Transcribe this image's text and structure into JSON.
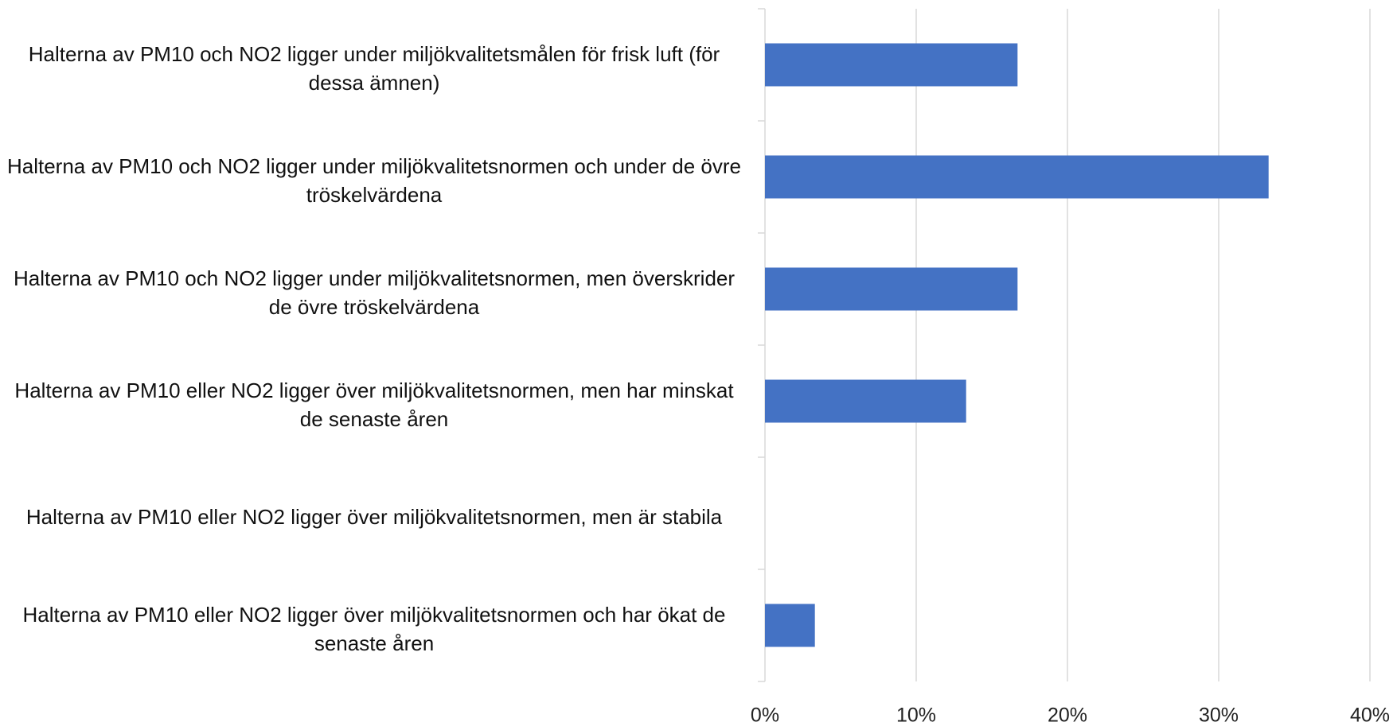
{
  "chart_data": {
    "type": "barh",
    "categories": [
      "Halterna av PM10 och NO2 ligger under miljökvalitetsmålen för frisk luft (för dessa ämnen)",
      "Halterna av PM10 och NO2 ligger under miljökvalitetsnormen och under de övre tröskelvärdena",
      "Halterna av PM10 och NO2 ligger under miljökvalitetsnormen, men överskrider de övre tröskelvärdena",
      "Halterna av PM10 eller NO2 ligger över miljökvalitetsnormen, men har minskat de senaste åren",
      "Halterna av PM10 eller NO2 ligger över miljökvalitetsnormen, men är stabila",
      "Halterna av PM10 eller NO2 ligger över miljökvalitetsnormen och har ökat de senaste åren"
    ],
    "values": [
      16.7,
      33.3,
      16.7,
      13.3,
      0,
      3.3
    ],
    "color": "#4472c4",
    "xlim": [
      0,
      40
    ],
    "xticks": [
      {
        "value": 0,
        "label": "0%"
      },
      {
        "value": 10,
        "label": "10%"
      },
      {
        "value": 20,
        "label": "20%"
      },
      {
        "value": 30,
        "label": "30%"
      },
      {
        "value": 40,
        "label": "40%"
      }
    ],
    "grid": true
  }
}
